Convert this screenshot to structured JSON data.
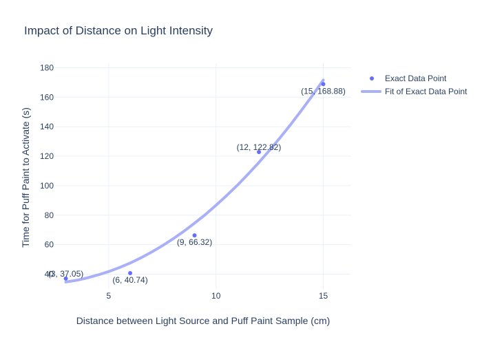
{
  "chart_data": {
    "type": "scatter",
    "title": "Impact of Distance on Light Intensity",
    "xlabel": "Distance between Light Source and Puff Paint Sample (cm)",
    "ylabel": "Time for Puff Paint to Activate (s)",
    "xlim": [
      2.5,
      16.3
    ],
    "ylim": [
      30,
      183
    ],
    "x_ticks": [
      5,
      10,
      15
    ],
    "y_ticks": [
      40,
      60,
      80,
      100,
      120,
      140,
      160,
      180
    ],
    "grid": true,
    "legend": "top-right",
    "series": [
      {
        "name": "Exact Data Point",
        "mode": "markers+text",
        "color": "#636efa",
        "x": [
          3,
          6,
          9,
          12,
          15
        ],
        "y": [
          37.05,
          40.74,
          66.32,
          122.82,
          168.88
        ],
        "labels": [
          "(3, 37.05)",
          "(6, 40.74)",
          "(9, 66.32)",
          "(12, 122.82)",
          "(15, 168.88)"
        ],
        "label_positions": [
          "above",
          "below",
          "below",
          "above",
          "below"
        ]
      },
      {
        "name": "Fit of Exact Data Point",
        "mode": "lines",
        "color": "#a9b0f7",
        "x": [
          3,
          3.5,
          4,
          4.5,
          5,
          5.5,
          6,
          6.5,
          7,
          7.5,
          8,
          8.5,
          9,
          9.5,
          10,
          10.5,
          11,
          11.5,
          12,
          12.5,
          13,
          13.5,
          14,
          14.5,
          15
        ],
        "y": [
          34.7,
          35.9,
          37.5,
          39.5,
          41.8,
          44.5,
          47.6,
          51.1,
          55.0,
          59.3,
          64.0,
          69.1,
          74.6,
          80.4,
          86.7,
          93.4,
          100.4,
          107.9,
          115.8,
          124.1,
          132.8,
          141.9,
          151.4,
          161.3,
          171.6
        ]
      }
    ]
  }
}
